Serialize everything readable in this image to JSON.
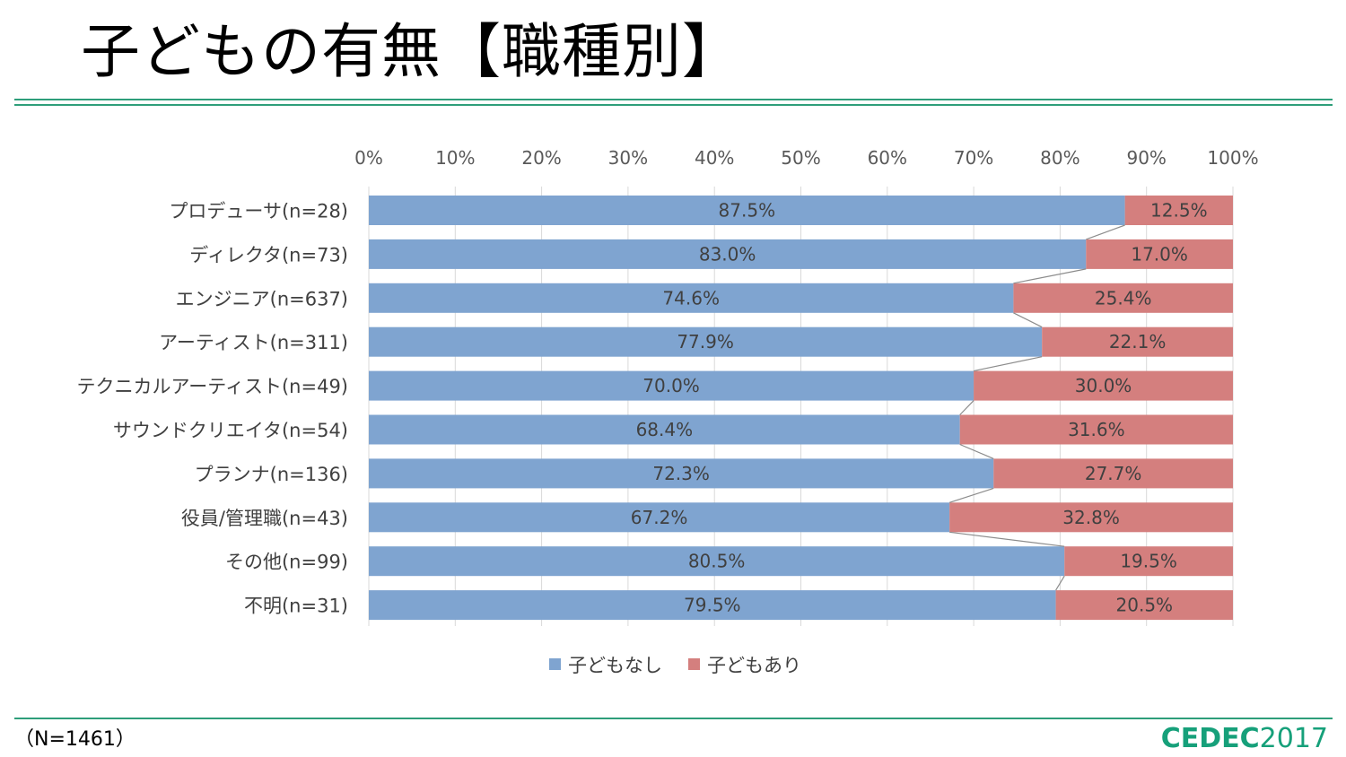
{
  "page": {
    "title": "子どもの有無【職種別】",
    "footnote": "（N=1461）",
    "logo_bold": "CEDEC",
    "logo_year": "2017"
  },
  "colors": {
    "series_no_children": "#7fa4d0",
    "series_with_children": "#d47f7e",
    "accent_rule": "#2e9e7a"
  },
  "chart_data": {
    "type": "bar",
    "orientation": "horizontal",
    "stacked": "100%",
    "categories": [
      "プロデューサ(n=28)",
      "ディレクタ(n=73)",
      "エンジニア(n=637)",
      "アーティスト(n=311)",
      "テクニカルアーティスト(n=49)",
      "サウンドクリエイタ(n=54)",
      "プランナ(n=136)",
      "役員/管理職(n=43)",
      "その他(n=99)",
      "不明(n=31)"
    ],
    "series": [
      {
        "name": "子どもなし",
        "values": [
          87.5,
          83.0,
          74.6,
          77.9,
          70.0,
          68.4,
          72.3,
          67.2,
          80.5,
          79.5
        ],
        "labels": [
          "87.5%",
          "83.0%",
          "74.6%",
          "77.9%",
          "70.0%",
          "68.4%",
          "72.3%",
          "67.2%",
          "80.5%",
          "79.5%"
        ]
      },
      {
        "name": "子どもあり",
        "values": [
          12.5,
          17.0,
          25.4,
          22.1,
          30.0,
          31.6,
          27.7,
          32.8,
          19.5,
          20.5
        ],
        "labels": [
          "12.5%",
          "17.0%",
          "25.4%",
          "22.1%",
          "30.0%",
          "31.6%",
          "27.7%",
          "32.8%",
          "19.5%",
          "20.5%"
        ]
      }
    ],
    "xlim": [
      0,
      100
    ],
    "xticks": [
      "0%",
      "10%",
      "20%",
      "30%",
      "40%",
      "50%",
      "60%",
      "70%",
      "80%",
      "90%",
      "100%"
    ],
    "x_axis_position": "top",
    "grid": true,
    "series_lines": true,
    "legend_position": "bottom"
  }
}
